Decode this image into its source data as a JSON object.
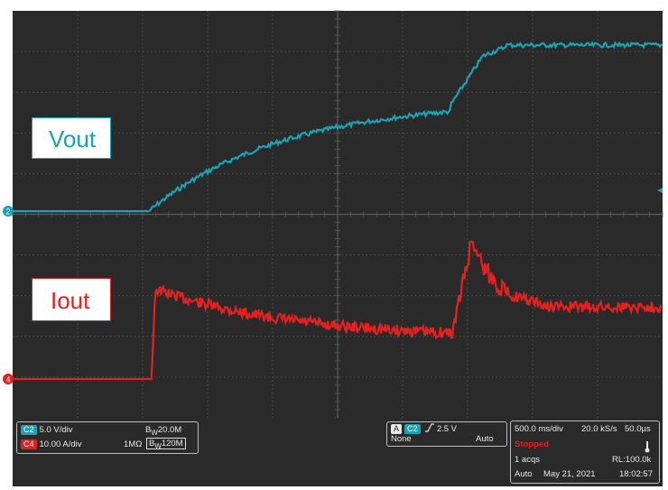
{
  "colors": {
    "grid_bg": "#2a2a2a",
    "grid_lines": "#5a5a5a",
    "ch2": "#1aa3b5",
    "ch4": "#e32121"
  },
  "labels": {
    "vout": "Vout",
    "iout": "Iout",
    "ch2_marker": "2",
    "ch4_marker": "4"
  },
  "channels": {
    "c2_chip": "C2",
    "c2_scale": "5.0 V/div",
    "c2_bw": "B<sub>W</sub>20.0M",
    "c4_chip": "C4",
    "c4_scale": "10.00 A/div",
    "c4_impedance": "1MΩ",
    "c4_bw": "B<sub>W</sub>120M"
  },
  "trigger": {
    "mode_chip": "A",
    "source_chip": "C2",
    "slope_icon": "rising-edge",
    "level": "2.5 V",
    "coupling": "None",
    "sweep": "Auto"
  },
  "acquisition": {
    "timebase": "500.0 ms/div",
    "sample_rate": "20.0 kS/s",
    "resolution": "50.0µs",
    "state": "Stopped",
    "acqs": "1 acqs",
    "record_length": "RL:100.0k",
    "mode": "Auto",
    "date": "May 21, 2021",
    "time": "18:02:57"
  }
}
